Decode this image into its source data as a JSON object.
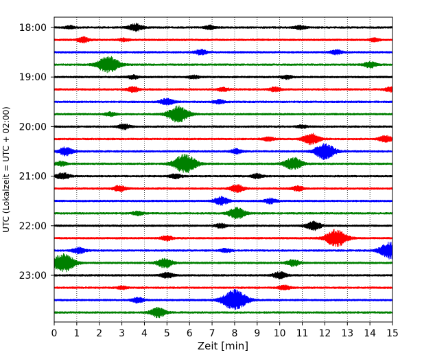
{
  "chart_data": {
    "type": "line",
    "title": "",
    "xlabel": "Zeit  [min]",
    "ylabel": "UTC (Lokalzeit = UTC + 02:00)",
    "xlim": [
      0,
      15
    ],
    "x_ticks": [
      "0",
      "1",
      "2",
      "3",
      "4",
      "5",
      "6",
      "7",
      "8",
      "9",
      "10",
      "11",
      "12",
      "13",
      "14",
      "15"
    ],
    "y_tick_labels": [
      "18:00",
      "19:00",
      "20:00",
      "21:00",
      "22:00",
      "23:00"
    ],
    "grid": "vertical dotted",
    "color_cycle": [
      "#000000",
      "#ff0000",
      "#0000ff",
      "#008000"
    ],
    "rows": [
      {
        "time": "18:00",
        "color": "black",
        "bursts": [
          [
            0.7,
            0.4
          ],
          [
            3.6,
            1.0
          ],
          [
            6.9,
            0.5
          ],
          [
            10.9,
            0.5
          ]
        ]
      },
      {
        "time": "18:15",
        "color": "red",
        "bursts": [
          [
            1.3,
            0.7
          ],
          [
            3.1,
            0.4
          ],
          [
            14.2,
            0.4
          ]
        ]
      },
      {
        "time": "18:30",
        "color": "blue",
        "bursts": [
          [
            6.5,
            0.7
          ],
          [
            12.5,
            0.6
          ]
        ]
      },
      {
        "time": "18:45",
        "color": "green",
        "bursts": [
          [
            2.4,
            2.3
          ],
          [
            14.0,
            0.8
          ]
        ]
      },
      {
        "time": "19:00",
        "color": "black",
        "bursts": [
          [
            3.5,
            0.5
          ],
          [
            6.2,
            0.4
          ],
          [
            10.3,
            0.5
          ]
        ]
      },
      {
        "time": "19:15",
        "color": "red",
        "bursts": [
          [
            3.5,
            0.7
          ],
          [
            7.5,
            0.5
          ],
          [
            9.8,
            0.6
          ],
          [
            14.9,
            0.6
          ]
        ]
      },
      {
        "time": "19:30",
        "color": "blue",
        "bursts": [
          [
            5.0,
            0.9
          ],
          [
            7.3,
            0.5
          ]
        ]
      },
      {
        "time": "19:45",
        "color": "green",
        "bursts": [
          [
            5.5,
            2.2
          ],
          [
            2.5,
            0.5
          ]
        ]
      },
      {
        "time": "20:00",
        "color": "black",
        "bursts": [
          [
            3.1,
            0.7
          ],
          [
            11.0,
            0.4
          ]
        ]
      },
      {
        "time": "20:15",
        "color": "red",
        "bursts": [
          [
            11.4,
            1.5
          ],
          [
            14.7,
            0.9
          ],
          [
            9.5,
            0.5
          ]
        ]
      },
      {
        "time": "20:30",
        "color": "blue",
        "bursts": [
          [
            12.0,
            2.1
          ],
          [
            0.5,
            1.1
          ],
          [
            8.1,
            0.6
          ]
        ]
      },
      {
        "time": "20:45",
        "color": "green",
        "bursts": [
          [
            5.8,
            2.5
          ],
          [
            10.6,
            1.7
          ],
          [
            0.3,
            0.6
          ]
        ]
      },
      {
        "time": "21:00",
        "color": "black",
        "bursts": [
          [
            0.4,
            0.9
          ],
          [
            5.4,
            0.6
          ],
          [
            9.0,
            0.6
          ]
        ]
      },
      {
        "time": "21:15",
        "color": "red",
        "bursts": [
          [
            2.9,
            0.8
          ],
          [
            8.1,
            1.0
          ],
          [
            10.8,
            0.6
          ]
        ]
      },
      {
        "time": "21:30",
        "color": "blue",
        "bursts": [
          [
            7.4,
            1.1
          ],
          [
            9.6,
            0.7
          ]
        ]
      },
      {
        "time": "21:45",
        "color": "green",
        "bursts": [
          [
            8.1,
            1.5
          ],
          [
            3.7,
            0.5
          ]
        ]
      },
      {
        "time": "22:00",
        "color": "black",
        "bursts": [
          [
            11.5,
            1.2
          ],
          [
            7.4,
            0.6
          ]
        ]
      },
      {
        "time": "22:15",
        "color": "red",
        "bursts": [
          [
            12.5,
            2.3
          ],
          [
            5.0,
            0.6
          ]
        ]
      },
      {
        "time": "22:30",
        "color": "blue",
        "bursts": [
          [
            14.9,
            2.2
          ],
          [
            1.1,
            0.8
          ],
          [
            7.6,
            0.5
          ]
        ]
      },
      {
        "time": "22:45",
        "color": "green",
        "bursts": [
          [
            0.4,
            2.5
          ],
          [
            4.9,
            1.3
          ],
          [
            10.6,
            0.9
          ]
        ]
      },
      {
        "time": "23:00",
        "color": "black",
        "bursts": [
          [
            10.0,
            0.9
          ],
          [
            5.0,
            0.7
          ]
        ]
      },
      {
        "time": "23:15",
        "color": "red",
        "bursts": [
          [
            10.2,
            0.6
          ],
          [
            3.0,
            0.4
          ]
        ]
      },
      {
        "time": "23:30",
        "color": "blue",
        "bursts": [
          [
            8.0,
            2.8
          ],
          [
            3.7,
            0.7
          ]
        ]
      },
      {
        "time": "23:45",
        "color": "green",
        "bursts": [
          [
            4.6,
            1.3
          ]
        ]
      }
    ]
  }
}
